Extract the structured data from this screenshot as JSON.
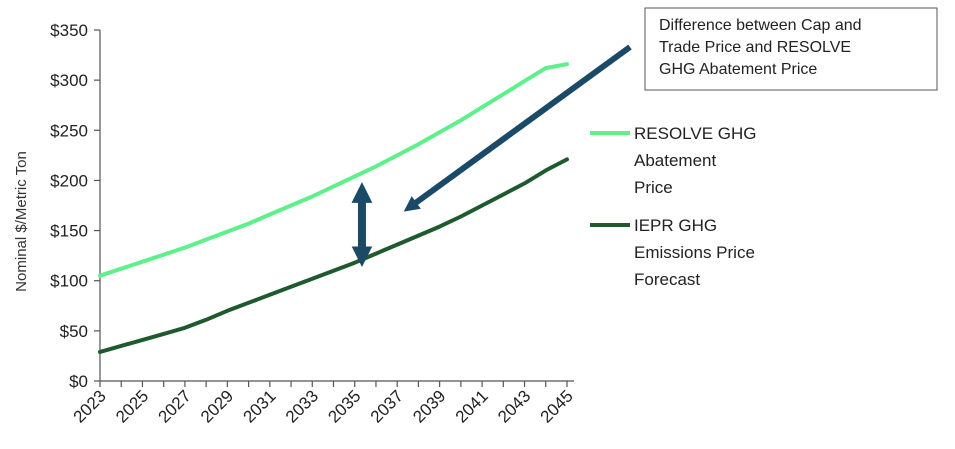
{
  "chart_data": {
    "type": "line",
    "title": "",
    "xlabel": "",
    "ylabel": "Nominal $/Metric Ton",
    "x": [
      2023,
      2024,
      2025,
      2026,
      2027,
      2028,
      2029,
      2030,
      2031,
      2032,
      2033,
      2034,
      2035,
      2036,
      2037,
      2038,
      2039,
      2040,
      2041,
      2042,
      2043,
      2044,
      2045
    ],
    "x_tick_labels": [
      "2023",
      "2025",
      "2027",
      "2029",
      "2031",
      "2033",
      "2035",
      "2037",
      "2039",
      "2041",
      "2043",
      "2045"
    ],
    "ylim": [
      0,
      350
    ],
    "y_tick_labels": [
      "$0",
      "$50",
      "$100",
      "$150",
      "$200",
      "$250",
      "$300",
      "$350"
    ],
    "grid": false,
    "legend_position": "right",
    "series": [
      {
        "name": "RESOLVE GHG Abatement Price",
        "legend_lines": [
          "RESOLVE GHG",
          "Abatement",
          "Price"
        ],
        "color": "#5ef08a",
        "values": [
          105,
          112,
          119,
          126,
          133,
          141,
          149,
          157,
          166,
          175,
          184,
          194,
          204,
          214,
          225,
          236,
          248,
          260,
          273,
          286,
          299,
          312,
          316
        ]
      },
      {
        "name": "IEPR GHG Emissions Price Forecast",
        "legend_lines": [
          "IEPR GHG",
          "Emissions Price",
          "Forecast"
        ],
        "color": "#1f5a2f",
        "values": [
          29,
          35,
          41,
          47,
          53,
          61,
          70,
          78,
          86,
          94,
          102,
          110,
          118,
          127,
          136,
          145,
          154,
          164,
          175,
          186,
          197,
          210,
          221
        ]
      }
    ],
    "annotations": [
      {
        "text_lines": [
          "Difference between Cap and",
          "Trade Price and RESOLVE",
          "GHG Abatement Price"
        ],
        "arrow_color": "#1b4a66",
        "double_arrow_x": 2036,
        "double_arrow_between": [
          118,
          198
        ]
      }
    ]
  }
}
